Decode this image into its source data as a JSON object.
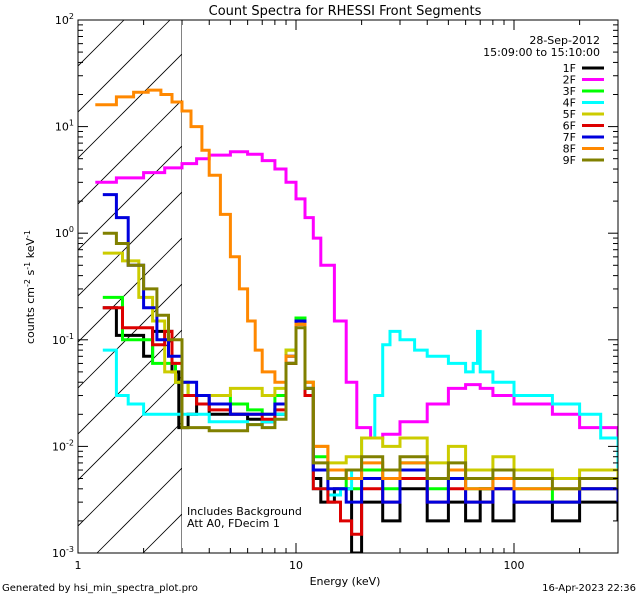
{
  "chart_data": {
    "type": "line",
    "title": "Count Spectra for RHESSI Front Segments",
    "xlabel": "Energy (keV)",
    "ylabel": "counts cm-2 s-1 keV-1",
    "xscale": "log",
    "yscale": "log",
    "xlim": [
      1,
      300
    ],
    "ylim": [
      0.001,
      100
    ],
    "x_ticks": [
      {
        "v": 1,
        "label": "1"
      },
      {
        "v": 10,
        "label": "10"
      },
      {
        "v": 100,
        "label": "100"
      }
    ],
    "y_ticks": [
      {
        "v": 0.001,
        "base": "10",
        "exp": "-3"
      },
      {
        "v": 0.01,
        "base": "10",
        "exp": "-2"
      },
      {
        "v": 0.1,
        "base": "10",
        "exp": "-1"
      },
      {
        "v": 1,
        "base": "10",
        "exp": "0"
      },
      {
        "v": 10,
        "base": "10",
        "exp": "1"
      },
      {
        "v": 100,
        "base": "10",
        "exp": "2"
      }
    ],
    "hatched_region_x": [
      1,
      3
    ],
    "date": "28-Sep-2012",
    "time_range": "15:09:00 to 15:10:00",
    "annotations": [
      "Includes Background",
      "Att A0, FDecim 1"
    ],
    "legend_position": "top-right",
    "series": [
      {
        "name": "1F",
        "color": "#000000",
        "points": [
          [
            1.3,
            0.2
          ],
          [
            1.5,
            0.11
          ],
          [
            1.8,
            0.11
          ],
          [
            2.0,
            0.07
          ],
          [
            2.2,
            0.12
          ],
          [
            2.5,
            0.12
          ],
          [
            2.7,
            0.05
          ],
          [
            2.9,
            0.015
          ],
          [
            3.2,
            0.02
          ],
          [
            3.5,
            0.03
          ],
          [
            4,
            0.02
          ],
          [
            5,
            0.02
          ],
          [
            6,
            0.018
          ],
          [
            7,
            0.017
          ],
          [
            8,
            0.02
          ],
          [
            9,
            0.06
          ],
          [
            10,
            0.15
          ],
          [
            11,
            0.03
          ],
          [
            12,
            0.005
          ],
          [
            13,
            0.003
          ],
          [
            15,
            0.004
          ],
          [
            18,
            0.001
          ],
          [
            20,
            0.003
          ],
          [
            25,
            0.002
          ],
          [
            30,
            0.004
          ],
          [
            40,
            0.002
          ],
          [
            50,
            0.003
          ],
          [
            60,
            0.002
          ],
          [
            70,
            0.004
          ],
          [
            80,
            0.002
          ],
          [
            100,
            0.003
          ],
          [
            150,
            0.002
          ],
          [
            200,
            0.003
          ],
          [
            300,
            0.002
          ]
        ]
      },
      {
        "name": "2F",
        "color": "#ff00ff",
        "points": [
          [
            1.2,
            3.0
          ],
          [
            1.5,
            3.3
          ],
          [
            2.0,
            3.7
          ],
          [
            2.5,
            4.1
          ],
          [
            3,
            4.5
          ],
          [
            3.5,
            5.0
          ],
          [
            4,
            5.4
          ],
          [
            5,
            5.8
          ],
          [
            6,
            5.5
          ],
          [
            7,
            4.8
          ],
          [
            8,
            4.0
          ],
          [
            9,
            3.0
          ],
          [
            10,
            2.1
          ],
          [
            11,
            1.4
          ],
          [
            12,
            0.9
          ],
          [
            13,
            0.5
          ],
          [
            15,
            0.15
          ],
          [
            17,
            0.04
          ],
          [
            19,
            0.015
          ],
          [
            22,
            0.012
          ],
          [
            25,
            0.013
          ],
          [
            30,
            0.017
          ],
          [
            40,
            0.025
          ],
          [
            50,
            0.035
          ],
          [
            60,
            0.038
          ],
          [
            70,
            0.035
          ],
          [
            80,
            0.03
          ],
          [
            100,
            0.025
          ],
          [
            150,
            0.02
          ],
          [
            200,
            0.015
          ],
          [
            300,
            0.012
          ]
        ]
      },
      {
        "name": "3F",
        "color": "#00ff00",
        "points": [
          [
            1.3,
            0.25
          ],
          [
            1.6,
            0.1
          ],
          [
            1.9,
            0.1
          ],
          [
            2.2,
            0.06
          ],
          [
            2.5,
            0.06
          ],
          [
            2.8,
            0.04
          ],
          [
            3.2,
            0.03
          ],
          [
            4,
            0.03
          ],
          [
            5,
            0.025
          ],
          [
            6,
            0.022
          ],
          [
            7,
            0.02
          ],
          [
            8,
            0.03
          ],
          [
            9,
            0.08
          ],
          [
            10,
            0.16
          ],
          [
            11,
            0.04
          ],
          [
            12,
            0.008
          ],
          [
            14,
            0.005
          ],
          [
            17,
            0.004
          ],
          [
            20,
            0.006
          ],
          [
            25,
            0.004
          ],
          [
            30,
            0.007
          ],
          [
            40,
            0.004
          ],
          [
            50,
            0.005
          ],
          [
            60,
            0.004
          ],
          [
            80,
            0.005
          ],
          [
            100,
            0.004
          ],
          [
            150,
            0.003
          ],
          [
            200,
            0.004
          ],
          [
            300,
            0.003
          ]
        ]
      },
      {
        "name": "4F",
        "color": "#00ffff",
        "points": [
          [
            1.3,
            0.08
          ],
          [
            1.5,
            0.03
          ],
          [
            1.7,
            0.025
          ],
          [
            2,
            0.02
          ],
          [
            2.5,
            0.02
          ],
          [
            3,
            0.02
          ],
          [
            3.5,
            0.02
          ],
          [
            4,
            0.017
          ],
          [
            5,
            0.017
          ],
          [
            6,
            0.016
          ],
          [
            7,
            0.017
          ],
          [
            8,
            0.02
          ],
          [
            9,
            0.07
          ],
          [
            10,
            0.14
          ],
          [
            11,
            0.035
          ],
          [
            12,
            0.004
          ],
          [
            14,
            0.0035
          ],
          [
            16,
            0.004
          ],
          [
            18,
            0.006
          ],
          [
            20,
            0.012
          ],
          [
            23,
            0.03
          ],
          [
            25,
            0.09
          ],
          [
            27,
            0.12
          ],
          [
            30,
            0.1
          ],
          [
            35,
            0.08
          ],
          [
            40,
            0.07
          ],
          [
            50,
            0.06
          ],
          [
            60,
            0.05
          ],
          [
            65,
            0.06
          ],
          [
            68,
            0.12
          ],
          [
            70,
            0.05
          ],
          [
            80,
            0.04
          ],
          [
            100,
            0.03
          ],
          [
            150,
            0.025
          ],
          [
            200,
            0.02
          ],
          [
            250,
            0.012
          ],
          [
            300,
            0.006
          ]
        ]
      },
      {
        "name": "5F",
        "color": "#cccc00",
        "points": [
          [
            1.3,
            0.65
          ],
          [
            1.6,
            0.55
          ],
          [
            1.9,
            0.25
          ],
          [
            2.2,
            0.15
          ],
          [
            2.5,
            0.05
          ],
          [
            2.8,
            0.04
          ],
          [
            3.2,
            0.03
          ],
          [
            4,
            0.03
          ],
          [
            5,
            0.035
          ],
          [
            6,
            0.035
          ],
          [
            7,
            0.03
          ],
          [
            8,
            0.035
          ],
          [
            9,
            0.08
          ],
          [
            10,
            0.15
          ],
          [
            11,
            0.04
          ],
          [
            12,
            0.01
          ],
          [
            14,
            0.007
          ],
          [
            17,
            0.008
          ],
          [
            20,
            0.012
          ],
          [
            25,
            0.01
          ],
          [
            30,
            0.012
          ],
          [
            40,
            0.007
          ],
          [
            50,
            0.01
          ],
          [
            60,
            0.006
          ],
          [
            80,
            0.008
          ],
          [
            100,
            0.006
          ],
          [
            150,
            0.005
          ],
          [
            200,
            0.006
          ],
          [
            300,
            0.005
          ]
        ]
      },
      {
        "name": "6F",
        "color": "#dd0000",
        "points": [
          [
            1.3,
            0.2
          ],
          [
            1.6,
            0.13
          ],
          [
            1.9,
            0.13
          ],
          [
            2.2,
            0.09
          ],
          [
            2.5,
            0.12
          ],
          [
            2.7,
            0.06
          ],
          [
            3,
            0.03
          ],
          [
            3.5,
            0.025
          ],
          [
            4,
            0.022
          ],
          [
            5,
            0.02
          ],
          [
            6,
            0.02
          ],
          [
            7,
            0.018
          ],
          [
            8,
            0.022
          ],
          [
            9,
            0.06
          ],
          [
            10,
            0.14
          ],
          [
            11,
            0.03
          ],
          [
            12,
            0.004
          ],
          [
            14,
            0.003
          ],
          [
            16,
            0.002
          ],
          [
            18,
            0.0015
          ],
          [
            20,
            0.004
          ],
          [
            25,
            0.003
          ],
          [
            30,
            0.005
          ],
          [
            40,
            0.003
          ],
          [
            50,
            0.004
          ],
          [
            60,
            0.003
          ],
          [
            80,
            0.004
          ],
          [
            100,
            0.003
          ],
          [
            150,
            0.003
          ],
          [
            200,
            0.004
          ],
          [
            300,
            0.003
          ]
        ]
      },
      {
        "name": "7F",
        "color": "#0000dd",
        "points": [
          [
            1.3,
            2.3
          ],
          [
            1.5,
            1.4
          ],
          [
            1.7,
            0.5
          ],
          [
            2,
            0.2
          ],
          [
            2.3,
            0.1
          ],
          [
            2.6,
            0.07
          ],
          [
            3,
            0.04
          ],
          [
            3.5,
            0.03
          ],
          [
            4,
            0.025
          ],
          [
            5,
            0.02
          ],
          [
            6,
            0.02
          ],
          [
            7,
            0.02
          ],
          [
            8,
            0.025
          ],
          [
            9,
            0.07
          ],
          [
            10,
            0.15
          ],
          [
            11,
            0.035
          ],
          [
            12,
            0.006
          ],
          [
            14,
            0.004
          ],
          [
            17,
            0.003
          ],
          [
            20,
            0.005
          ],
          [
            25,
            0.003
          ],
          [
            30,
            0.006
          ],
          [
            40,
            0.003
          ],
          [
            50,
            0.005
          ],
          [
            60,
            0.003
          ],
          [
            80,
            0.004
          ],
          [
            100,
            0.003
          ],
          [
            150,
            0.003
          ],
          [
            200,
            0.004
          ],
          [
            300,
            0.003
          ]
        ]
      },
      {
        "name": "8F",
        "color": "#ff8800",
        "points": [
          [
            1.2,
            16
          ],
          [
            1.5,
            19
          ],
          [
            1.8,
            21
          ],
          [
            2.1,
            22
          ],
          [
            2.4,
            20
          ],
          [
            2.7,
            17
          ],
          [
            3.0,
            14
          ],
          [
            3.3,
            10
          ],
          [
            3.7,
            6
          ],
          [
            4,
            3.5
          ],
          [
            4.5,
            1.5
          ],
          [
            5,
            0.6
          ],
          [
            5.5,
            0.3
          ],
          [
            6,
            0.15
          ],
          [
            6.5,
            0.08
          ],
          [
            7,
            0.05
          ],
          [
            8,
            0.04
          ],
          [
            9,
            0.07
          ],
          [
            10,
            0.14
          ],
          [
            11,
            0.04
          ],
          [
            12,
            0.01
          ],
          [
            14,
            0.006
          ],
          [
            17,
            0.005
          ],
          [
            20,
            0.007
          ],
          [
            25,
            0.005
          ],
          [
            30,
            0.007
          ],
          [
            40,
            0.005
          ],
          [
            50,
            0.006
          ],
          [
            60,
            0.004
          ],
          [
            80,
            0.005
          ],
          [
            100,
            0.004
          ],
          [
            150,
            0.004
          ],
          [
            200,
            0.005
          ],
          [
            300,
            0.004
          ]
        ]
      },
      {
        "name": "9F",
        "color": "#808000",
        "points": [
          [
            1.3,
            1.0
          ],
          [
            1.5,
            0.8
          ],
          [
            1.7,
            0.5
          ],
          [
            2,
            0.3
          ],
          [
            2.3,
            0.17
          ],
          [
            2.6,
            0.1
          ],
          [
            3,
            0.015
          ],
          [
            3.5,
            0.015
          ],
          [
            4,
            0.014
          ],
          [
            5,
            0.014
          ],
          [
            6,
            0.016
          ],
          [
            7,
            0.015
          ],
          [
            8,
            0.018
          ],
          [
            9,
            0.06
          ],
          [
            10,
            0.13
          ],
          [
            11,
            0.035
          ],
          [
            12,
            0.007
          ],
          [
            14,
            0.005
          ],
          [
            17,
            0.006
          ],
          [
            20,
            0.008
          ],
          [
            25,
            0.006
          ],
          [
            30,
            0.008
          ],
          [
            40,
            0.005
          ],
          [
            50,
            0.007
          ],
          [
            60,
            0.005
          ],
          [
            80,
            0.006
          ],
          [
            100,
            0.005
          ],
          [
            150,
            0.004
          ],
          [
            200,
            0.005
          ],
          [
            300,
            0.004
          ]
        ]
      }
    ]
  },
  "footer": {
    "left": "Generated by hsi_min_spectra_plot.pro",
    "right": "16-Apr-2023 22:36"
  }
}
